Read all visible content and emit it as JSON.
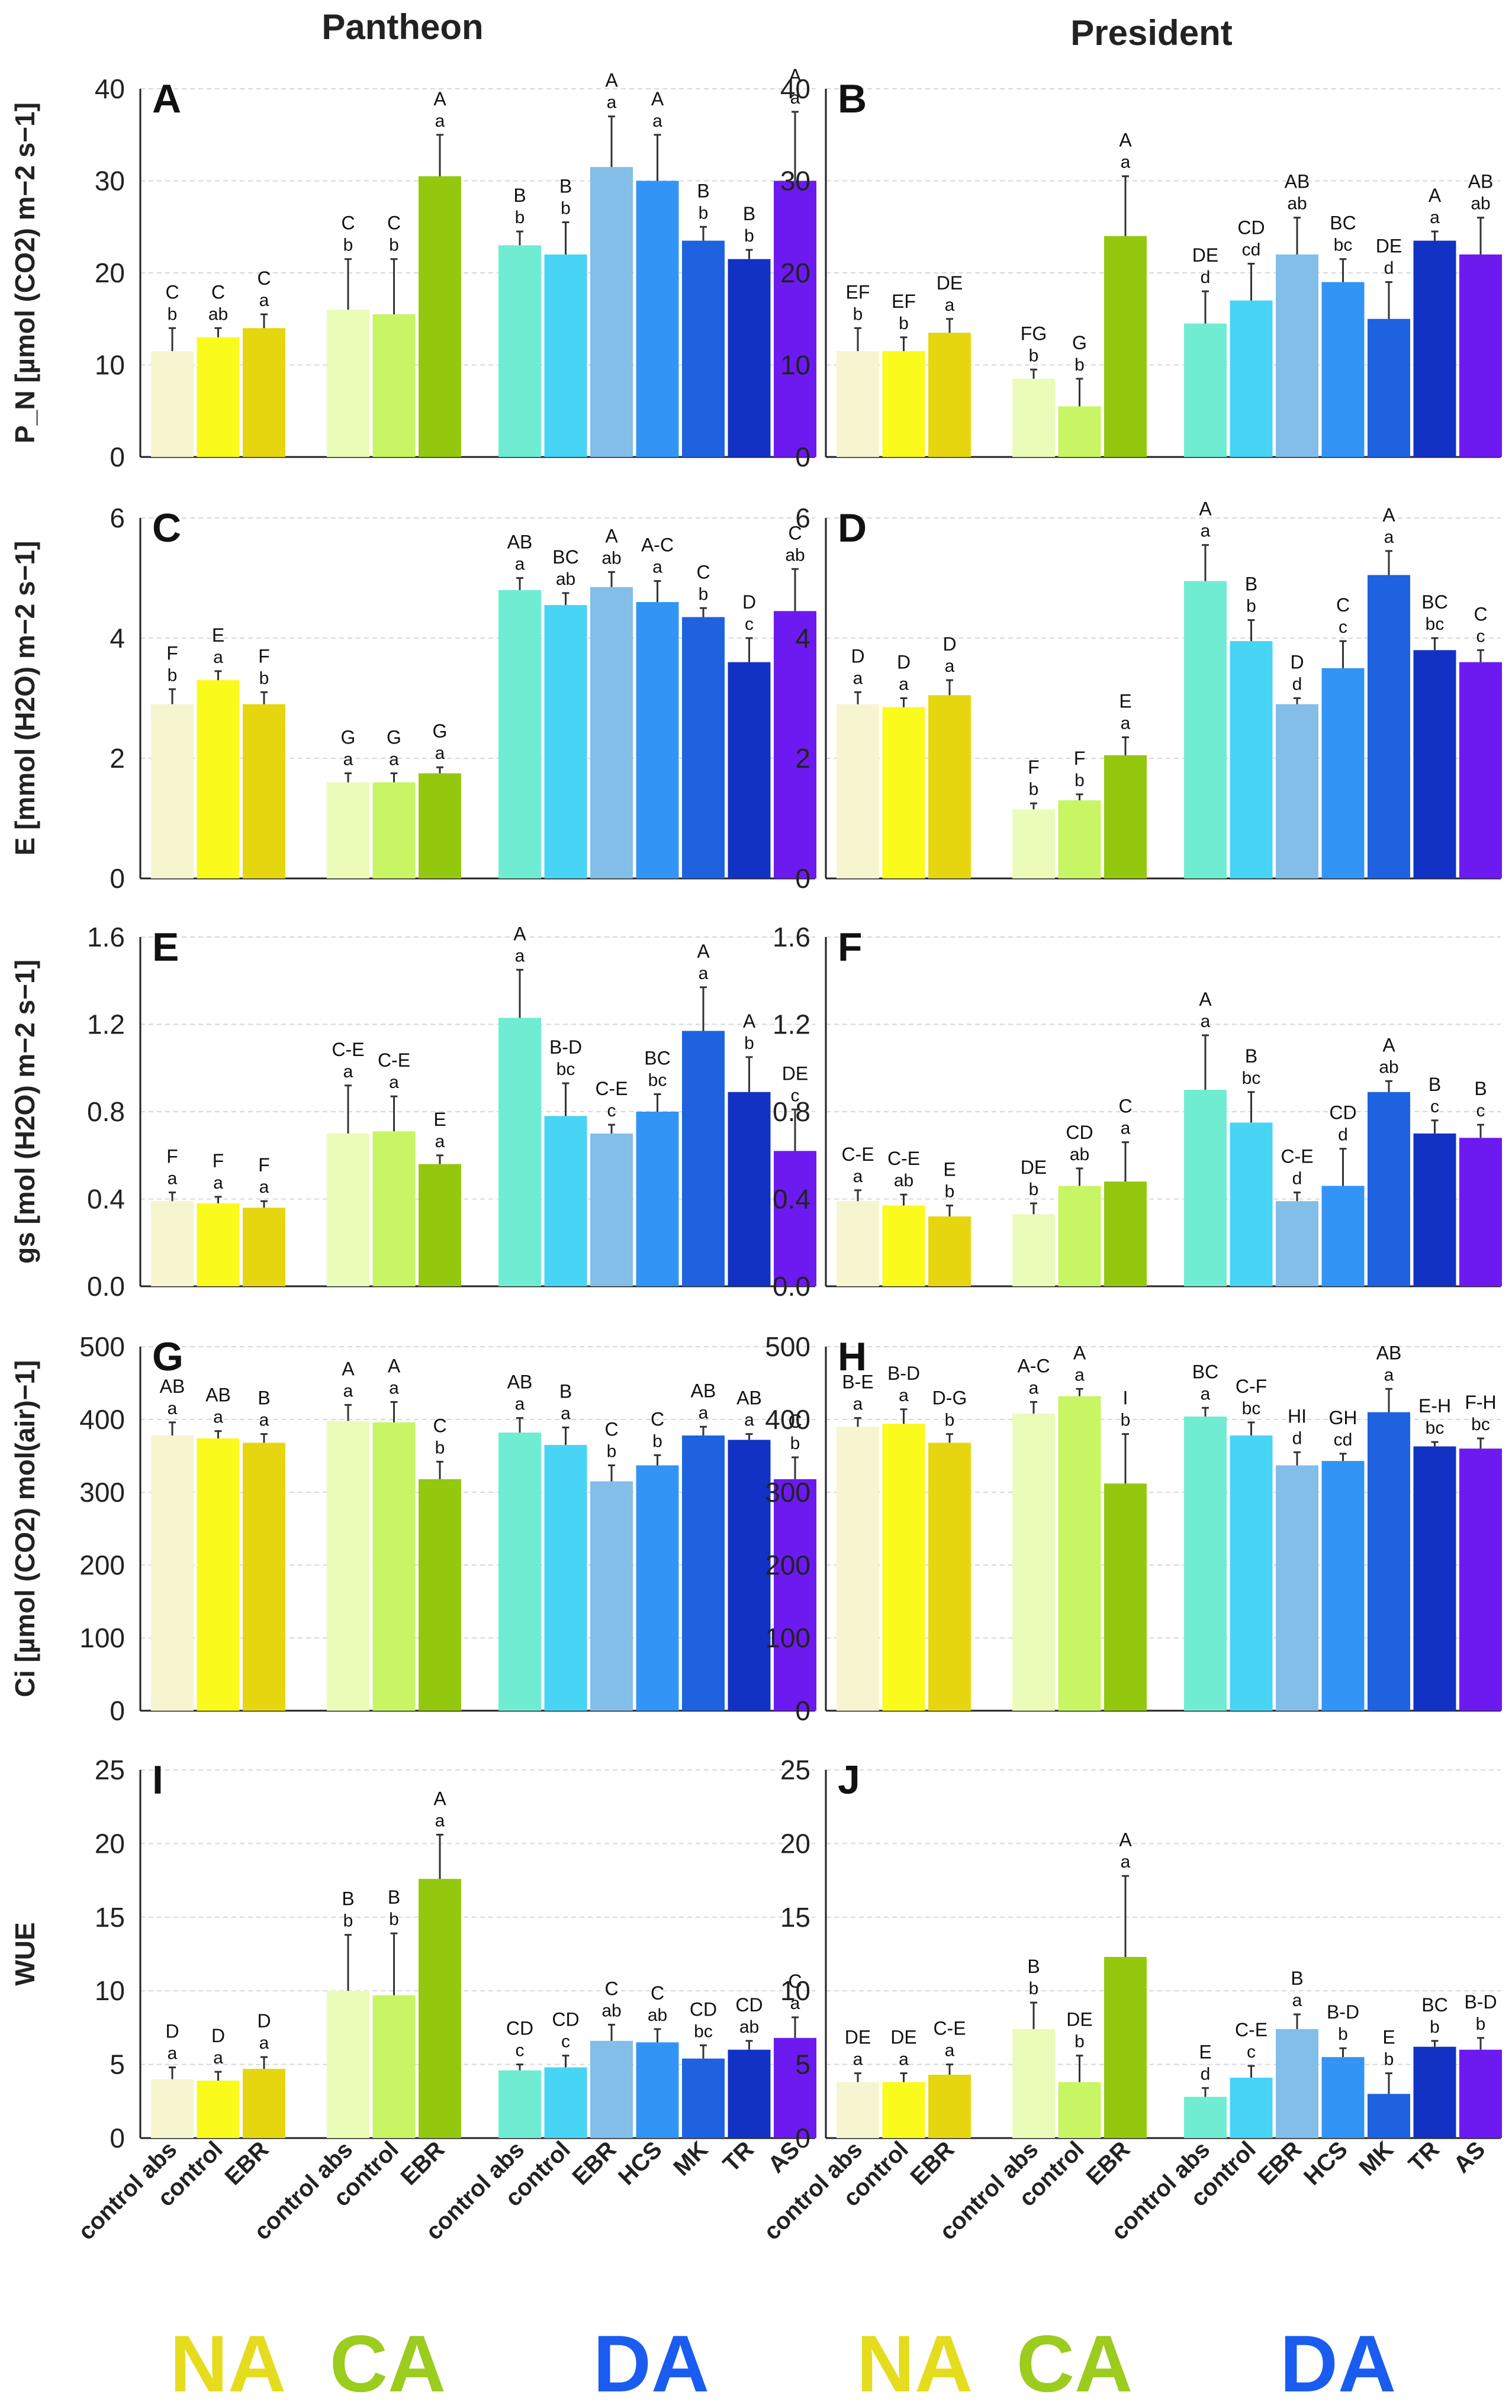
{
  "figure": {
    "column_titles": [
      "Pantheon",
      "President"
    ],
    "x_labels": [
      "control abs",
      "control",
      "EBR",
      "control abs",
      "control",
      "EBR",
      "control abs",
      "control",
      "EBR",
      "HCS",
      "MK",
      "TR",
      "AS"
    ],
    "groups": [
      {
        "label": "NA",
        "color": "#e6dc1e"
      },
      {
        "label": "CA",
        "color": "#9bcc1e"
      },
      {
        "label": "DA",
        "color": "#1a5cf0"
      }
    ],
    "bar_colors": [
      "#f7f4d0",
      "#fafa1c",
      "#e6d610",
      "#ebfbb8",
      "#c8f564",
      "#94c80e",
      "#70ecd2",
      "#48d4f5",
      "#82bee8",
      "#3295f5",
      "#1e62e0",
      "#1232c4",
      "#6c1af0"
    ]
  },
  "chart_data": [
    {
      "type": "bar",
      "panel": "A",
      "title": "Pantheon",
      "ylabel": "P_N [µmol (CO2) m−2 s−1]",
      "ylim": [
        0,
        40
      ],
      "yticks": [
        0,
        10,
        20,
        30,
        40
      ],
      "values": [
        11.5,
        13,
        14,
        16,
        15.5,
        30.5,
        23,
        22,
        31.5,
        30,
        23.5,
        21.5,
        30
      ],
      "errors": [
        2.5,
        1,
        1.5,
        5.5,
        6,
        4.5,
        1.5,
        3.5,
        5.5,
        5,
        1.5,
        1,
        7.5
      ],
      "upper": [
        "C",
        "C",
        "C",
        "C",
        "C",
        "A",
        "B",
        "B",
        "A",
        "A",
        "B",
        "B",
        "A"
      ],
      "lower": [
        "b",
        "ab",
        "a",
        "b",
        "b",
        "a",
        "b",
        "b",
        "a",
        "a",
        "b",
        "b",
        "a"
      ]
    },
    {
      "type": "bar",
      "panel": "B",
      "title": "President",
      "ylabel": "",
      "ylim": [
        0,
        40
      ],
      "yticks": [
        0,
        10,
        20,
        30,
        40
      ],
      "values": [
        11.5,
        11.5,
        13.5,
        8.5,
        5.5,
        24,
        14.5,
        17,
        22,
        19,
        15,
        23.5,
        22
      ],
      "errors": [
        2.5,
        1.5,
        1.5,
        1,
        3,
        6.5,
        3.5,
        4,
        4,
        2.5,
        4,
        1,
        4
      ],
      "upper": [
        "EF",
        "EF",
        "DE",
        "FG",
        "G",
        "A",
        "DE",
        "CD",
        "AB",
        "BC",
        "DE",
        "A",
        "AB"
      ],
      "lower": [
        "b",
        "b",
        "a",
        "b",
        "b",
        "a",
        "d",
        "cd",
        "ab",
        "bc",
        "d",
        "a",
        "ab"
      ]
    },
    {
      "type": "bar",
      "panel": "C",
      "ylabel": "E [mmol (H2O) m−2 s−1]",
      "ylim": [
        0,
        6
      ],
      "yticks": [
        0,
        2,
        4,
        6
      ],
      "values": [
        2.9,
        3.3,
        2.9,
        1.6,
        1.6,
        1.75,
        4.8,
        4.55,
        4.85,
        4.6,
        4.35,
        3.6,
        4.45
      ],
      "errors": [
        0.25,
        0.15,
        0.2,
        0.15,
        0.15,
        0.1,
        0.2,
        0.2,
        0.25,
        0.35,
        0.15,
        0.4,
        0.7
      ],
      "upper": [
        "F",
        "E",
        "F",
        "G",
        "G",
        "G",
        "AB",
        "BC",
        "A",
        "A-C",
        "C",
        "D",
        "C"
      ],
      "lower": [
        "b",
        "a",
        "b",
        "a",
        "a",
        "a",
        "a",
        "ab",
        "ab",
        "a",
        "b",
        "c",
        "ab"
      ]
    },
    {
      "type": "bar",
      "panel": "D",
      "ylabel": "",
      "ylim": [
        0,
        6
      ],
      "yticks": [
        0,
        2,
        4,
        6
      ],
      "values": [
        2.9,
        2.85,
        3.05,
        1.15,
        1.3,
        2.05,
        4.95,
        3.95,
        2.9,
        3.5,
        5.05,
        3.8,
        3.6
      ],
      "errors": [
        0.2,
        0.15,
        0.25,
        0.1,
        0.1,
        0.3,
        0.6,
        0.35,
        0.1,
        0.45,
        0.4,
        0.2,
        0.2
      ],
      "upper": [
        "D",
        "D",
        "D",
        "F",
        "F",
        "E",
        "A",
        "B",
        "D",
        "C",
        "A",
        "BC",
        "C"
      ],
      "lower": [
        "a",
        "a",
        "a",
        "b",
        "b",
        "a",
        "a",
        "b",
        "d",
        "c",
        "a",
        "bc",
        "c"
      ]
    },
    {
      "type": "bar",
      "panel": "E",
      "ylabel": "gs [mol (H2O) m−2 s−1]",
      "ylim": [
        0,
        1.6
      ],
      "yticks": [
        0.0,
        0.4,
        0.8,
        1.2,
        1.6
      ],
      "values": [
        0.39,
        0.38,
        0.36,
        0.7,
        0.71,
        0.56,
        1.23,
        0.78,
        0.7,
        0.8,
        1.17,
        0.89,
        0.62
      ],
      "errors": [
        0.04,
        0.03,
        0.03,
        0.22,
        0.16,
        0.04,
        0.22,
        0.15,
        0.04,
        0.08,
        0.2,
        0.16,
        0.19
      ],
      "upper": [
        "F",
        "F",
        "F",
        "C-E",
        "C-E",
        "E",
        "A",
        "B-D",
        "C-E",
        "BC",
        "A",
        "A",
        "DE"
      ],
      "lower": [
        "a",
        "a",
        "a",
        "a",
        "a",
        "a",
        "a",
        "bc",
        "c",
        "bc",
        "a",
        "b",
        "c"
      ]
    },
    {
      "type": "bar",
      "panel": "F",
      "ylabel": "",
      "ylim": [
        0,
        1.6
      ],
      "yticks": [
        0.0,
        0.4,
        0.8,
        1.2,
        1.6
      ],
      "values": [
        0.39,
        0.37,
        0.32,
        0.33,
        0.46,
        0.48,
        0.9,
        0.75,
        0.39,
        0.46,
        0.89,
        0.7,
        0.68
      ],
      "errors": [
        0.05,
        0.05,
        0.05,
        0.05,
        0.08,
        0.18,
        0.25,
        0.14,
        0.04,
        0.17,
        0.05,
        0.06,
        0.06
      ],
      "upper": [
        "C-E",
        "C-E",
        "E",
        "DE",
        "CD",
        "C",
        "A",
        "B",
        "C-E",
        "CD",
        "A",
        "B",
        "B"
      ],
      "lower": [
        "a",
        "ab",
        "b",
        "b",
        "ab",
        "a",
        "a",
        "bc",
        "d",
        "d",
        "ab",
        "c",
        "c"
      ]
    },
    {
      "type": "bar",
      "panel": "G",
      "ylabel": "Ci [µmol (CO2) mol(air)−1]",
      "ylim": [
        0,
        500
      ],
      "yticks": [
        0,
        100,
        200,
        300,
        400,
        500
      ],
      "values": [
        378,
        374,
        368,
        398,
        396,
        318,
        382,
        365,
        315,
        337,
        378,
        372,
        318
      ],
      "errors": [
        18,
        10,
        12,
        22,
        28,
        24,
        20,
        24,
        22,
        14,
        12,
        8,
        30
      ],
      "upper": [
        "AB",
        "AB",
        "B",
        "A",
        "A",
        "C",
        "AB",
        "B",
        "C",
        "C",
        "AB",
        "AB",
        "C"
      ],
      "lower": [
        "a",
        "a",
        "a",
        "a",
        "a",
        "b",
        "a",
        "a",
        "b",
        "b",
        "a",
        "a",
        "b"
      ]
    },
    {
      "type": "bar",
      "panel": "H",
      "ylabel": "",
      "ylim": [
        0,
        500
      ],
      "yticks": [
        0,
        100,
        200,
        300,
        400,
        500
      ],
      "values": [
        390,
        394,
        368,
        408,
        432,
        312,
        404,
        378,
        337,
        343,
        410,
        363,
        360
      ],
      "errors": [
        12,
        20,
        12,
        16,
        10,
        68,
        12,
        18,
        18,
        10,
        32,
        6,
        14
      ],
      "upper": [
        "B-E",
        "B-D",
        "D-G",
        "A-C",
        "A",
        "I",
        "BC",
        "C-F",
        "HI",
        "GH",
        "AB",
        "E-H",
        "F-H"
      ],
      "lower": [
        "a",
        "a",
        "b",
        "a",
        "a",
        "b",
        "a",
        "bc",
        "d",
        "cd",
        "a",
        "bc",
        "bc"
      ]
    },
    {
      "type": "bar",
      "panel": "I",
      "ylabel": "WUE",
      "ylim": [
        0,
        25
      ],
      "yticks": [
        0,
        5,
        10,
        15,
        20,
        25
      ],
      "values": [
        4,
        3.9,
        4.7,
        10,
        9.7,
        17.6,
        4.6,
        4.8,
        6.6,
        6.5,
        5.4,
        6,
        6.8
      ],
      "errors": [
        0.8,
        0.6,
        0.8,
        3.8,
        4.2,
        3,
        0.4,
        0.8,
        1.1,
        0.9,
        0.9,
        0.6,
        1.4
      ],
      "upper": [
        "D",
        "D",
        "D",
        "B",
        "B",
        "A",
        "CD",
        "CD",
        "C",
        "C",
        "CD",
        "CD",
        "C"
      ],
      "lower": [
        "a",
        "a",
        "a",
        "b",
        "b",
        "a",
        "c",
        "c",
        "ab",
        "ab",
        "bc",
        "ab",
        "a"
      ]
    },
    {
      "type": "bar",
      "panel": "J",
      "ylabel": "",
      "ylim": [
        0,
        25
      ],
      "yticks": [
        0,
        5,
        10,
        15,
        20,
        25
      ],
      "values": [
        3.8,
        3.8,
        4.3,
        7.4,
        3.8,
        12.3,
        2.8,
        4.1,
        7.4,
        5.5,
        3,
        6.2,
        6
      ],
      "errors": [
        0.6,
        0.6,
        0.7,
        1.8,
        1.8,
        5.5,
        0.6,
        0.8,
        1,
        0.6,
        1.4,
        0.4,
        0.8
      ],
      "upper": [
        "DE",
        "DE",
        "C-E",
        "B",
        "DE",
        "A",
        "E",
        "C-E",
        "B",
        "B-D",
        "E",
        "BC",
        "B-D"
      ],
      "lower": [
        "a",
        "a",
        "a",
        "b",
        "b",
        "a",
        "d",
        "c",
        "a",
        "b",
        "b",
        "b",
        "b"
      ]
    }
  ]
}
